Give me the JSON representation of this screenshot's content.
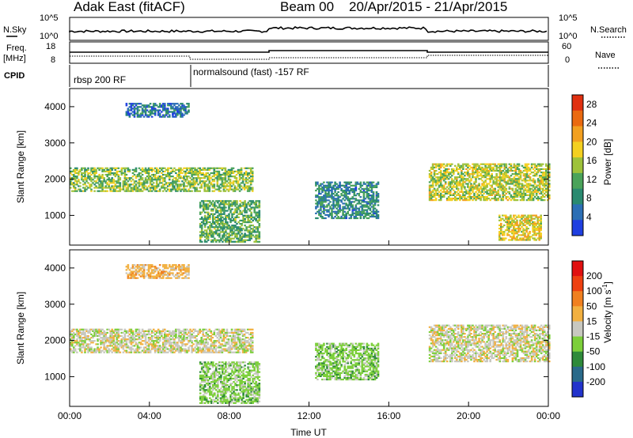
{
  "header": {
    "station": "Adak East (fitACF)",
    "beam": "Beam 00",
    "dates": "20/Apr/2015 - 21/Apr/2015"
  },
  "status_panel": {
    "nsky_label": "N.Sky",
    "nsky_scale_top": "10^5",
    "nsky_scale_bottom": "10^0",
    "nsearch_label": "N.Search",
    "nsearch_scale_top": "10^5",
    "nsearch_scale_bottom": "10^0",
    "freq_label": "Freq.",
    "freq_unit": "[MHz]",
    "freq_top": "18",
    "freq_bottom": "8",
    "nave_label": "Nave",
    "nave_top": "60",
    "nave_bottom": "0",
    "cpid_label": "CPID"
  },
  "cpid_segments": [
    {
      "label": "rbsp 200 RF",
      "start_hour": 0,
      "end_hour": 6.1
    },
    {
      "label": "normalsound (fast) -157 RF",
      "start_hour": 6.1,
      "end_hour": 24
    }
  ],
  "chart_data": [
    {
      "type": "heatmap",
      "panel": "power",
      "xlabel": "",
      "ylabel": "Slant Range [km]",
      "xlim_hours": [
        0,
        24
      ],
      "ylim": [
        180,
        4500
      ],
      "xticks": [
        "00:00",
        "04:00",
        "08:00",
        "12:00",
        "16:00",
        "20:00",
        "00:00"
      ],
      "yticks": [
        1000,
        2000,
        3000,
        4000
      ],
      "colorbar": {
        "label": "Power [dB]",
        "ticks": [
          4,
          8,
          12,
          16,
          20,
          24,
          28
        ],
        "range": [
          0,
          30
        ],
        "colors": [
          "#1f3fe0",
          "#2c6fb5",
          "#2a8a70",
          "#4aa35a",
          "#9ec23a",
          "#f4d020",
          "#f2a020",
          "#ea6a10",
          "#e03010"
        ]
      },
      "regions": [
        {
          "name": "main-band",
          "hours": [
            0,
            9.2
          ],
          "range_km": [
            1650,
            2300
          ],
          "power_db": 14
        },
        {
          "name": "upper-echo",
          "hours": [
            2.8,
            6.0
          ],
          "range_km": [
            3700,
            4100
          ],
          "power_db": 6
        },
        {
          "name": "lower-echo",
          "hours": [
            6.5,
            9.5
          ],
          "range_km": [
            250,
            1400
          ],
          "power_db": 12
        },
        {
          "name": "midday-patches",
          "hours": [
            12.3,
            15.5
          ],
          "range_km": [
            900,
            1900
          ],
          "power_db": 8
        },
        {
          "name": "evening-band",
          "hours": [
            18.0,
            24.0
          ],
          "range_km": [
            1400,
            2400
          ],
          "power_db": 16
        },
        {
          "name": "late-lower",
          "hours": [
            21.5,
            23.6
          ],
          "range_km": [
            300,
            1000
          ],
          "power_db": 18
        }
      ]
    },
    {
      "type": "heatmap",
      "panel": "velocity",
      "xlabel": "Time UT",
      "ylabel": "Slant Range [km]",
      "xlim_hours": [
        0,
        24
      ],
      "ylim": [
        180,
        4500
      ],
      "xticks": [
        "00:00",
        "04:00",
        "08:00",
        "12:00",
        "16:00",
        "20:00",
        "00:00"
      ],
      "yticks": [
        1000,
        2000,
        3000,
        4000
      ],
      "colorbar": {
        "label": "Velocity [m s^-1]",
        "ticks": [
          200,
          100,
          50,
          15,
          -15,
          -50,
          -100,
          -200
        ],
        "colors": [
          "#2233cc",
          "#2a6a8a",
          "#2e8a3a",
          "#7ccf3a",
          "#c8c8c0",
          "#f2b040",
          "#f08020",
          "#ee4010",
          "#e01010"
        ]
      },
      "regions": [
        {
          "name": "main-band",
          "hours": [
            0,
            9.2
          ],
          "range_km": [
            1650,
            2300
          ],
          "velocity": 0
        },
        {
          "name": "upper-echo",
          "hours": [
            2.8,
            6.0
          ],
          "range_km": [
            3700,
            4100
          ],
          "velocity": -30
        },
        {
          "name": "lower-echo",
          "hours": [
            6.5,
            9.5
          ],
          "range_km": [
            250,
            1400
          ],
          "velocity": 30
        },
        {
          "name": "midday-patches",
          "hours": [
            12.3,
            15.5
          ],
          "range_km": [
            900,
            1900
          ],
          "velocity": 30
        },
        {
          "name": "evening-band",
          "hours": [
            18.0,
            24.0
          ],
          "range_km": [
            1400,
            2400
          ],
          "velocity": 0
        }
      ]
    }
  ],
  "colors": {
    "axis": "#000000",
    "background": "#ffffff"
  }
}
